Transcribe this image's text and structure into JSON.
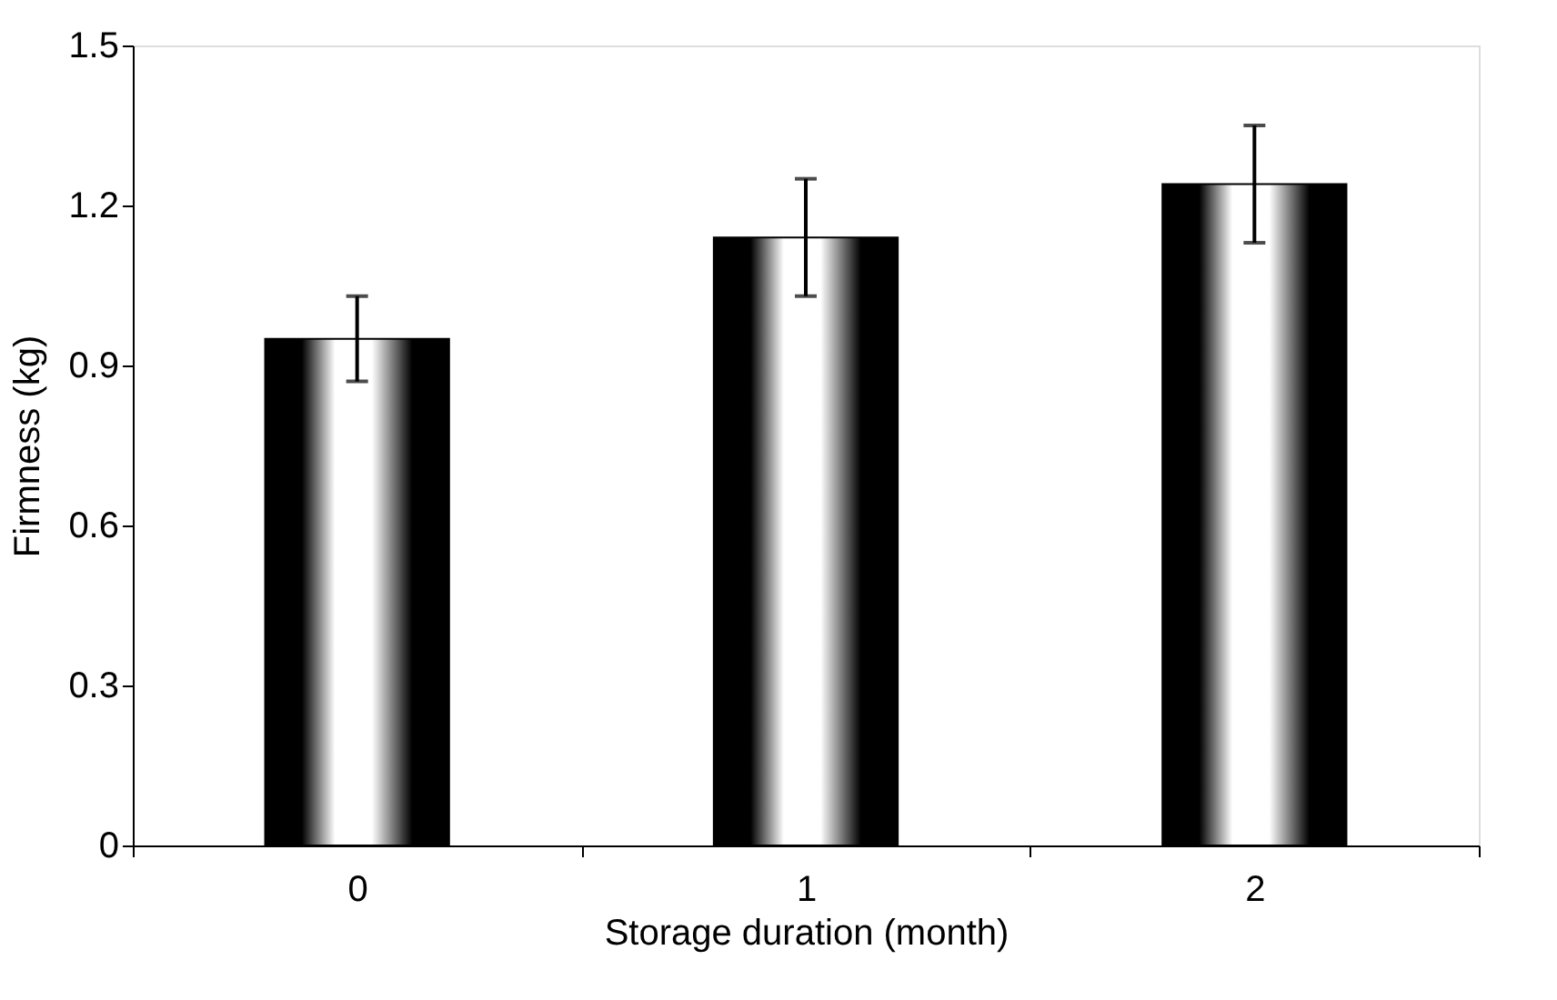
{
  "chart_data": {
    "type": "bar",
    "xlabel": "Storage duration (month)",
    "ylabel": "Firmness (kg)",
    "categories": [
      "0",
      "1",
      "2"
    ],
    "series": [
      {
        "color": "#000000",
        "values": [
          0.95,
          1.14,
          1.24
        ],
        "errors": [
          0.08,
          0.11,
          0.11
        ]
      }
    ],
    "ylim": [
      0,
      1.5
    ],
    "yticks": [
      0,
      0.3,
      0.6,
      0.9,
      1.2,
      1.5
    ],
    "grid": false
  }
}
